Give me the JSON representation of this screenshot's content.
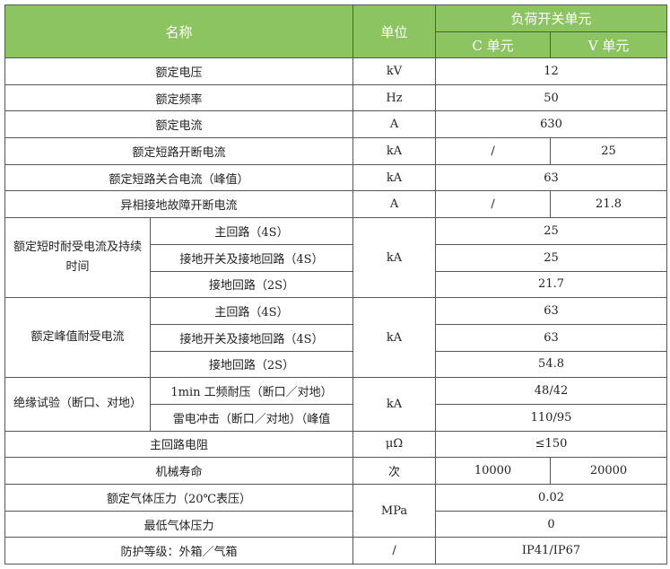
{
  "header": {
    "name": "名称",
    "unit": "单位",
    "group": "负荷开关单元",
    "c_unit": "C 单元",
    "v_unit": "V 单元"
  },
  "colors": {
    "header_bg": "#8dc462",
    "header_text": "#ffffff",
    "border": "#555555"
  },
  "rows": [
    {
      "name": "额定电压",
      "unit": "kV",
      "value": "12"
    },
    {
      "name": "额定频率",
      "unit": "Hz",
      "value": "50"
    },
    {
      "name": "额定电流",
      "unit": "A",
      "value": "630"
    },
    {
      "name": "额定短路开断电流",
      "unit": "kA",
      "c": "/",
      "v": "25"
    },
    {
      "name": "额定短路关合电流（峰值）",
      "unit": "kA",
      "value": "63"
    },
    {
      "name": "异相接地故障开断电流",
      "unit": "A",
      "c": "/",
      "v": "21.8"
    }
  ],
  "groups": [
    {
      "name": "额定短时耐受电流及持续时间",
      "unit": "kA",
      "items": [
        {
          "sub": "主回路（4S）",
          "value": "25"
        },
        {
          "sub": "接地开关及接地回路（4S）",
          "value": "25"
        },
        {
          "sub": "接地回路（2S）",
          "value": "21.7"
        }
      ]
    },
    {
      "name": "额定峰值耐受电流",
      "unit": "kA",
      "items": [
        {
          "sub": "主回路（4S）",
          "value": "63"
        },
        {
          "sub": "接地开关及接地回路（4S）",
          "value": "63"
        },
        {
          "sub": "接地回路（2S）",
          "value": "54.8"
        }
      ]
    },
    {
      "name": "绝缘试验（断口、对地）",
      "unit": "kA",
      "items": [
        {
          "sub": "1min 工频耐压（断口／对地）",
          "value": "48/42"
        },
        {
          "sub": "雷电冲击（断口／对地）（峰值",
          "value": "110/95"
        }
      ]
    }
  ],
  "tail": [
    {
      "name": "主回路电阻",
      "unit": "μΩ",
      "value": "≤150"
    },
    {
      "name": "机械寿命",
      "unit": "次",
      "c": "10000",
      "v": "20000"
    }
  ],
  "gas": {
    "unit": "MPa",
    "items": [
      {
        "name": "额定气体压力（20℃表压）",
        "value": "0.02"
      },
      {
        "name": "最低气体压力",
        "value": "0"
      }
    ]
  },
  "last": {
    "name": "防护等级：外箱／气箱",
    "unit": "/",
    "value": "IP41/IP67"
  }
}
